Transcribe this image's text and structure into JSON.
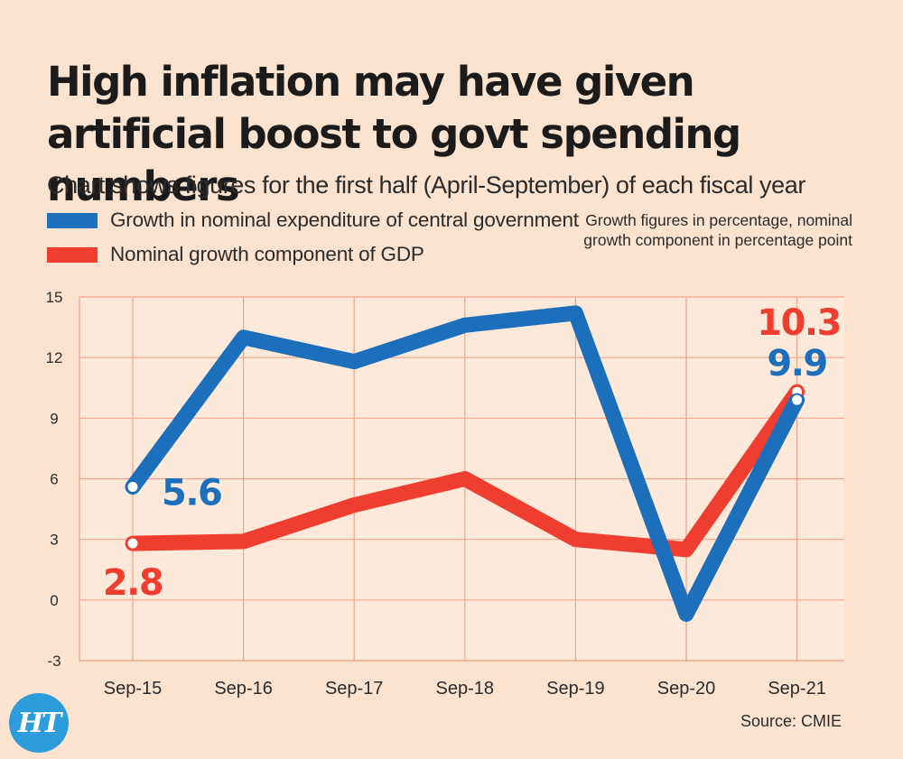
{
  "header": {
    "title": "High inflation may have given artificial boost to govt spending numbers",
    "subtitle": "Chart shows figures for the first half (April-September) of each fiscal year",
    "note": "Growth figures in percentage, nominal growth component in percentage point"
  },
  "legend": {
    "items": [
      {
        "label": "Growth in nominal expenditure of central government",
        "color": "#1c6fbb"
      },
      {
        "label": "Nominal growth component of GDP",
        "color": "#ef3e2f"
      }
    ]
  },
  "footer": {
    "source": "Source: CMIE",
    "logo_text": "HT"
  },
  "chart_data": {
    "type": "line",
    "categories": [
      "Sep-15",
      "Sep-16",
      "Sep-17",
      "Sep-18",
      "Sep-19",
      "Sep-20",
      "Sep-21"
    ],
    "series": [
      {
        "name": "Growth in nominal expenditure of central government",
        "color": "#1c6fbb",
        "values": [
          5.6,
          13.0,
          11.8,
          13.6,
          14.2,
          -0.7,
          9.9
        ]
      },
      {
        "name": "Nominal growth component of GDP",
        "color": "#ef3e2f",
        "values": [
          2.8,
          2.9,
          4.7,
          6.0,
          3.0,
          2.5,
          10.3
        ]
      }
    ],
    "annotations": [
      {
        "series": 0,
        "index": 0,
        "text": "5.6"
      },
      {
        "series": 1,
        "index": 0,
        "text": "2.8"
      },
      {
        "series": 0,
        "index": 6,
        "text": "9.9"
      },
      {
        "series": 1,
        "index": 6,
        "text": "10.3"
      }
    ],
    "yticks": [
      -3,
      0,
      3,
      6,
      9,
      12,
      15
    ],
    "ylim": [
      -3,
      15
    ],
    "grid": true
  }
}
